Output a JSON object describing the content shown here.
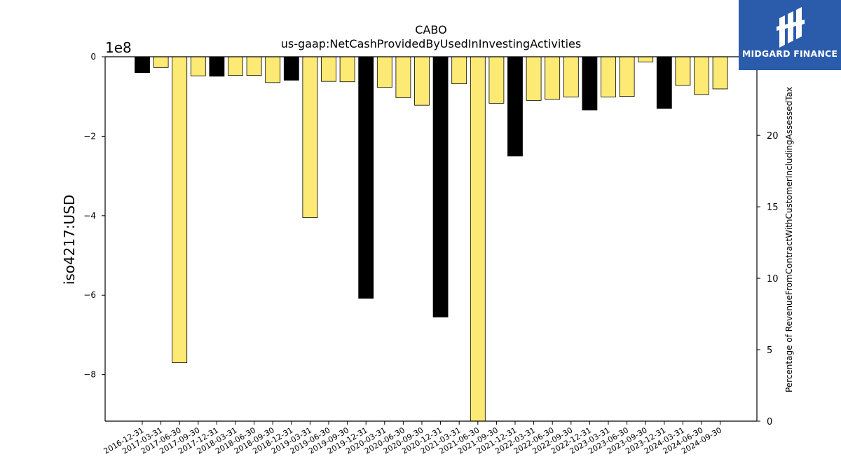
{
  "chart_data": {
    "type": "bar",
    "title": "CABO",
    "subtitle": "us-gaap:NetCashProvidedByUsedInInvestingActivities",
    "ylabel": "iso4217:USD",
    "y_offset_label": "1e8",
    "y2label": "Percentage of RevenueFromContractWithCustomerIncludingAssessedTax",
    "ylim": [
      -9.17,
      0
    ],
    "y2lim": [
      0,
      25.5
    ],
    "yticks": [
      0,
      -2,
      -4,
      -6,
      -8
    ],
    "y2ticks": [
      0,
      5,
      10,
      15,
      20
    ],
    "categories": [
      "2016-12-31",
      "2017-03-31",
      "2017-06-30",
      "2017-09-30",
      "2017-12-31",
      "2018-03-31",
      "2018-06-30",
      "2018-09-30",
      "2018-12-31",
      "2019-03-31",
      "2019-06-30",
      "2019-09-30",
      "2019-12-31",
      "2020-03-31",
      "2020-06-30",
      "2020-09-30",
      "2020-12-31",
      "2021-03-31",
      "2021-06-30",
      "2021-09-30",
      "2021-12-31",
      "2022-03-31",
      "2022-06-30",
      "2022-09-30",
      "2022-12-31",
      "2023-03-31",
      "2023-06-30",
      "2023-09-30",
      "2023-12-31",
      "2024-03-31",
      "2024-06-30",
      "2024-09-30"
    ],
    "values": [
      -0.4,
      -0.27,
      -7.7,
      -0.48,
      -0.49,
      -0.47,
      -0.47,
      -0.65,
      -0.59,
      -4.05,
      -0.62,
      -0.63,
      -6.08,
      -0.77,
      -1.03,
      -1.22,
      -6.55,
      -0.68,
      -9.17,
      -1.17,
      -2.5,
      -1.1,
      -1.07,
      -1.01,
      -1.34,
      -1.01,
      -1.0,
      -0.13,
      -1.3,
      -0.72,
      -0.95,
      -0.81
    ],
    "annual": [
      true,
      false,
      false,
      false,
      true,
      false,
      false,
      false,
      true,
      false,
      false,
      false,
      true,
      false,
      false,
      false,
      true,
      false,
      false,
      false,
      true,
      false,
      false,
      false,
      true,
      false,
      false,
      false,
      true,
      false,
      false,
      false
    ],
    "colors": {
      "annual": "#000000",
      "quarterly": "#fdea74",
      "edge": "#000000"
    }
  },
  "logo": {
    "text": "MIDGARD FINANCE",
    "background": "#2b5cab"
  }
}
